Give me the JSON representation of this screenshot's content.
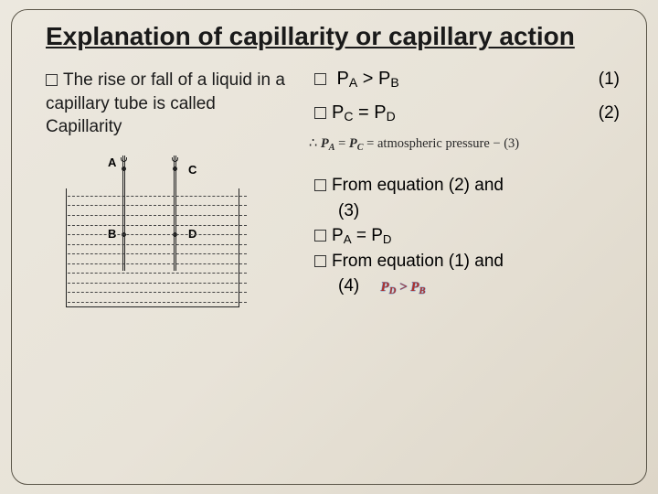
{
  "title": "Explanation of capillarity or capillary action",
  "left_text": "The rise or fall of a liquid in a capillary tube is called Capillarity",
  "eq1": {
    "lhs": " P",
    "subA": "A",
    "mid": " > P",
    "subB": "B",
    "num": "(1)"
  },
  "eq2": {
    "lhs": "P",
    "subA": "C",
    "mid": " = P",
    "subB": "D",
    "num": "(2)"
  },
  "line3_prefix": "∴  ",
  "line3_pa": "P",
  "line3_pa_sub": "A",
  "line3_eq": " = ",
  "line3_pc": "P",
  "line3_pc_sub": "C",
  "line3_rest": " = atmospheric pressure     − (3)",
  "concl1": "From equation (2) and",
  "concl1b": "(3)",
  "concl2_lhs": "P",
  "concl2_subA": "A",
  "concl2_mid": " = P",
  "concl2_subB": "D",
  "concl3": "From equation (1) and",
  "concl3b": "(4)",
  "final_pd": "P",
  "final_pd_sub": "D",
  "final_mid": " > ",
  "final_pb": "P",
  "final_pb_sub": "B",
  "diagram": {
    "labels": {
      "A": "A",
      "B": "B",
      "C": "C",
      "D": "D"
    },
    "dash_rows": 12,
    "colors": {
      "line": "#222222",
      "dash": "#444444"
    }
  }
}
